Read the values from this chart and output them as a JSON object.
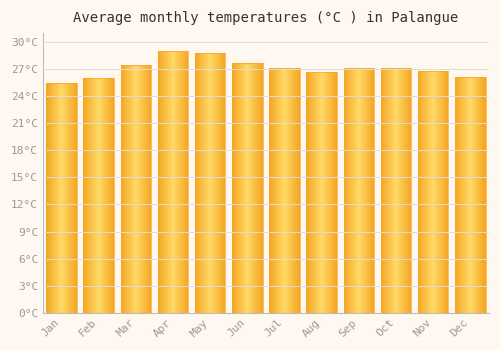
{
  "title": "Average monthly temperatures (°C ) in Palangue",
  "months": [
    "Jan",
    "Feb",
    "Mar",
    "Apr",
    "May",
    "Jun",
    "Jul",
    "Aug",
    "Sep",
    "Oct",
    "Nov",
    "Dec"
  ],
  "temperatures": [
    25.5,
    26.0,
    27.5,
    29.0,
    28.8,
    27.7,
    27.1,
    26.7,
    27.1,
    27.1,
    26.8,
    26.1
  ],
  "bar_color_center": "#FFD966",
  "bar_color_edge": "#F5A623",
  "background_color": "#FFF8F0",
  "plot_bg_color": "#FFF8F0",
  "grid_color": "#DDDDDD",
  "text_color": "#999999",
  "title_color": "#333333",
  "ylim": [
    0,
    31
  ],
  "yticks": [
    0,
    3,
    6,
    9,
    12,
    15,
    18,
    21,
    24,
    27,
    30
  ],
  "title_fontsize": 10,
  "tick_fontsize": 8,
  "bar_width": 0.82
}
